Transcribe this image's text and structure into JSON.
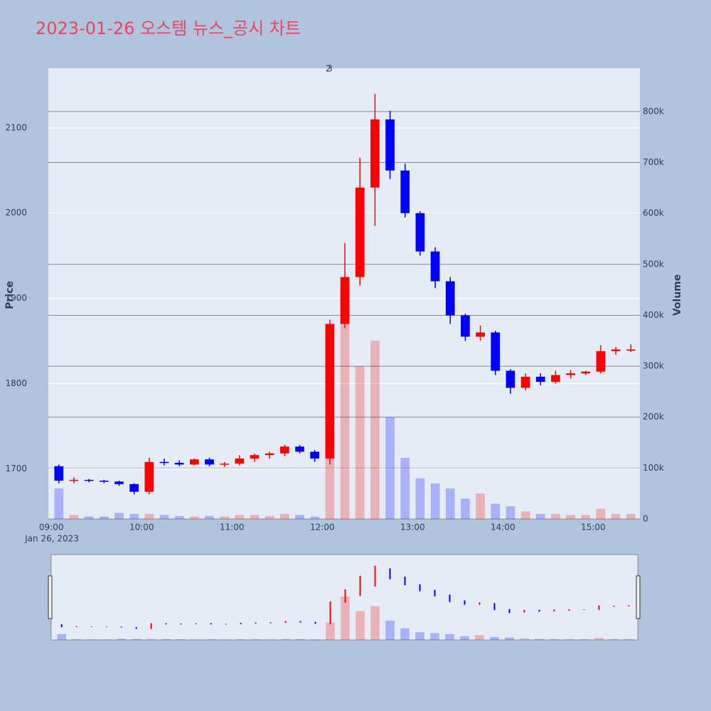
{
  "chart_data": {
    "type": "candlestick",
    "title": "2023-01-26 오스템 뉴스_공시 차트",
    "y_label": "Price",
    "y2_label": "Volume",
    "x_date_label": "Jan 26, 2023",
    "x": [
      "09:05",
      "09:15",
      "09:25",
      "09:35",
      "09:45",
      "09:55",
      "10:05",
      "10:15",
      "10:25",
      "10:35",
      "10:45",
      "10:55",
      "11:05",
      "11:15",
      "11:25",
      "11:35",
      "11:45",
      "11:55",
      "12:05",
      "12:15",
      "12:25",
      "12:35",
      "12:45",
      "12:55",
      "13:05",
      "13:15",
      "13:25",
      "13:35",
      "13:45",
      "13:55",
      "14:05",
      "14:15",
      "14:25",
      "14:35",
      "14:45",
      "14:55",
      "15:05",
      "15:15",
      "15:25"
    ],
    "open": [
      1703,
      1686,
      1687,
      1686,
      1685,
      1682,
      1673,
      1708,
      1707,
      1705,
      1711,
      1705,
      1706,
      1712,
      1716,
      1718,
      1726,
      1720,
      1712,
      1870,
      1925,
      2030,
      2110,
      2050,
      2000,
      1955,
      1920,
      1880,
      1855,
      1860,
      1815,
      1795,
      1808,
      1802,
      1810,
      1812,
      1814,
      1838,
      1840
    ],
    "high": [
      1705,
      1690,
      1688,
      1687,
      1686,
      1683,
      1713,
      1712,
      1710,
      1712,
      1713,
      1708,
      1716,
      1718,
      1720,
      1728,
      1728,
      1722,
      1875,
      1965,
      2065,
      2140,
      2120,
      2058,
      2002,
      1960,
      1925,
      1882,
      1868,
      1862,
      1817,
      1812,
      1812,
      1815,
      1816,
      1815,
      1845,
      1843,
      1846
    ],
    "low": [
      1683,
      1683,
      1684,
      1683,
      1680,
      1670,
      1670,
      1704,
      1703,
      1704,
      1703,
      1702,
      1704,
      1708,
      1712,
      1715,
      1718,
      1708,
      1705,
      1865,
      1915,
      1985,
      2040,
      1995,
      1950,
      1912,
      1870,
      1850,
      1850,
      1810,
      1788,
      1792,
      1798,
      1800,
      1806,
      1810,
      1812,
      1834,
      1837
    ],
    "close": [
      1686,
      1687,
      1686,
      1685,
      1682,
      1673,
      1708,
      1707,
      1705,
      1711,
      1705,
      1706,
      1712,
      1716,
      1718,
      1726,
      1720,
      1712,
      1870,
      1925,
      2030,
      2110,
      2050,
      2000,
      1955,
      1920,
      1880,
      1855,
      1860,
      1815,
      1795,
      1808,
      1802,
      1810,
      1812,
      1814,
      1838,
      1840,
      1840
    ],
    "volume": [
      60000,
      8000,
      5000,
      5000,
      12000,
      10000,
      10000,
      8000,
      6000,
      5000,
      6000,
      5000,
      8000,
      8000,
      6000,
      10000,
      8000,
      5000,
      180000,
      450000,
      300000,
      350000,
      200000,
      120000,
      80000,
      70000,
      60000,
      40000,
      50000,
      30000,
      25000,
      15000,
      10000,
      10000,
      8000,
      8000,
      20000,
      10000,
      10000
    ],
    "up_color": "#ff0000",
    "down_color": "#0000ff",
    "xlim": [
      "08:58",
      "15:31"
    ],
    "xticks": [
      "09:00",
      "10:00",
      "11:00",
      "12:00",
      "13:00",
      "14:00",
      "15:00"
    ],
    "ylim": [
      1641,
      2170
    ],
    "yticks": [
      1700,
      1800,
      1900,
      2000,
      2100
    ],
    "y2lim": [
      0,
      885000
    ],
    "y2ticks": [
      0,
      {
        "value": 100000,
        "label": "100k"
      },
      {
        "value": 200000,
        "label": "200k"
      },
      {
        "value": 300000,
        "label": "300k"
      },
      {
        "value": 400000,
        "label": "400k"
      },
      {
        "value": 500000,
        "label": "500k"
      },
      {
        "value": 600000,
        "label": "600k"
      },
      {
        "value": 700000,
        "label": "700k"
      },
      {
        "value": 800000,
        "label": "800k"
      }
    ],
    "annotations": [
      {
        "x": "12:04",
        "text": "2"
      },
      {
        "x": "12:05",
        "text": "3"
      }
    ],
    "grid": true,
    "rangeslider": true
  }
}
